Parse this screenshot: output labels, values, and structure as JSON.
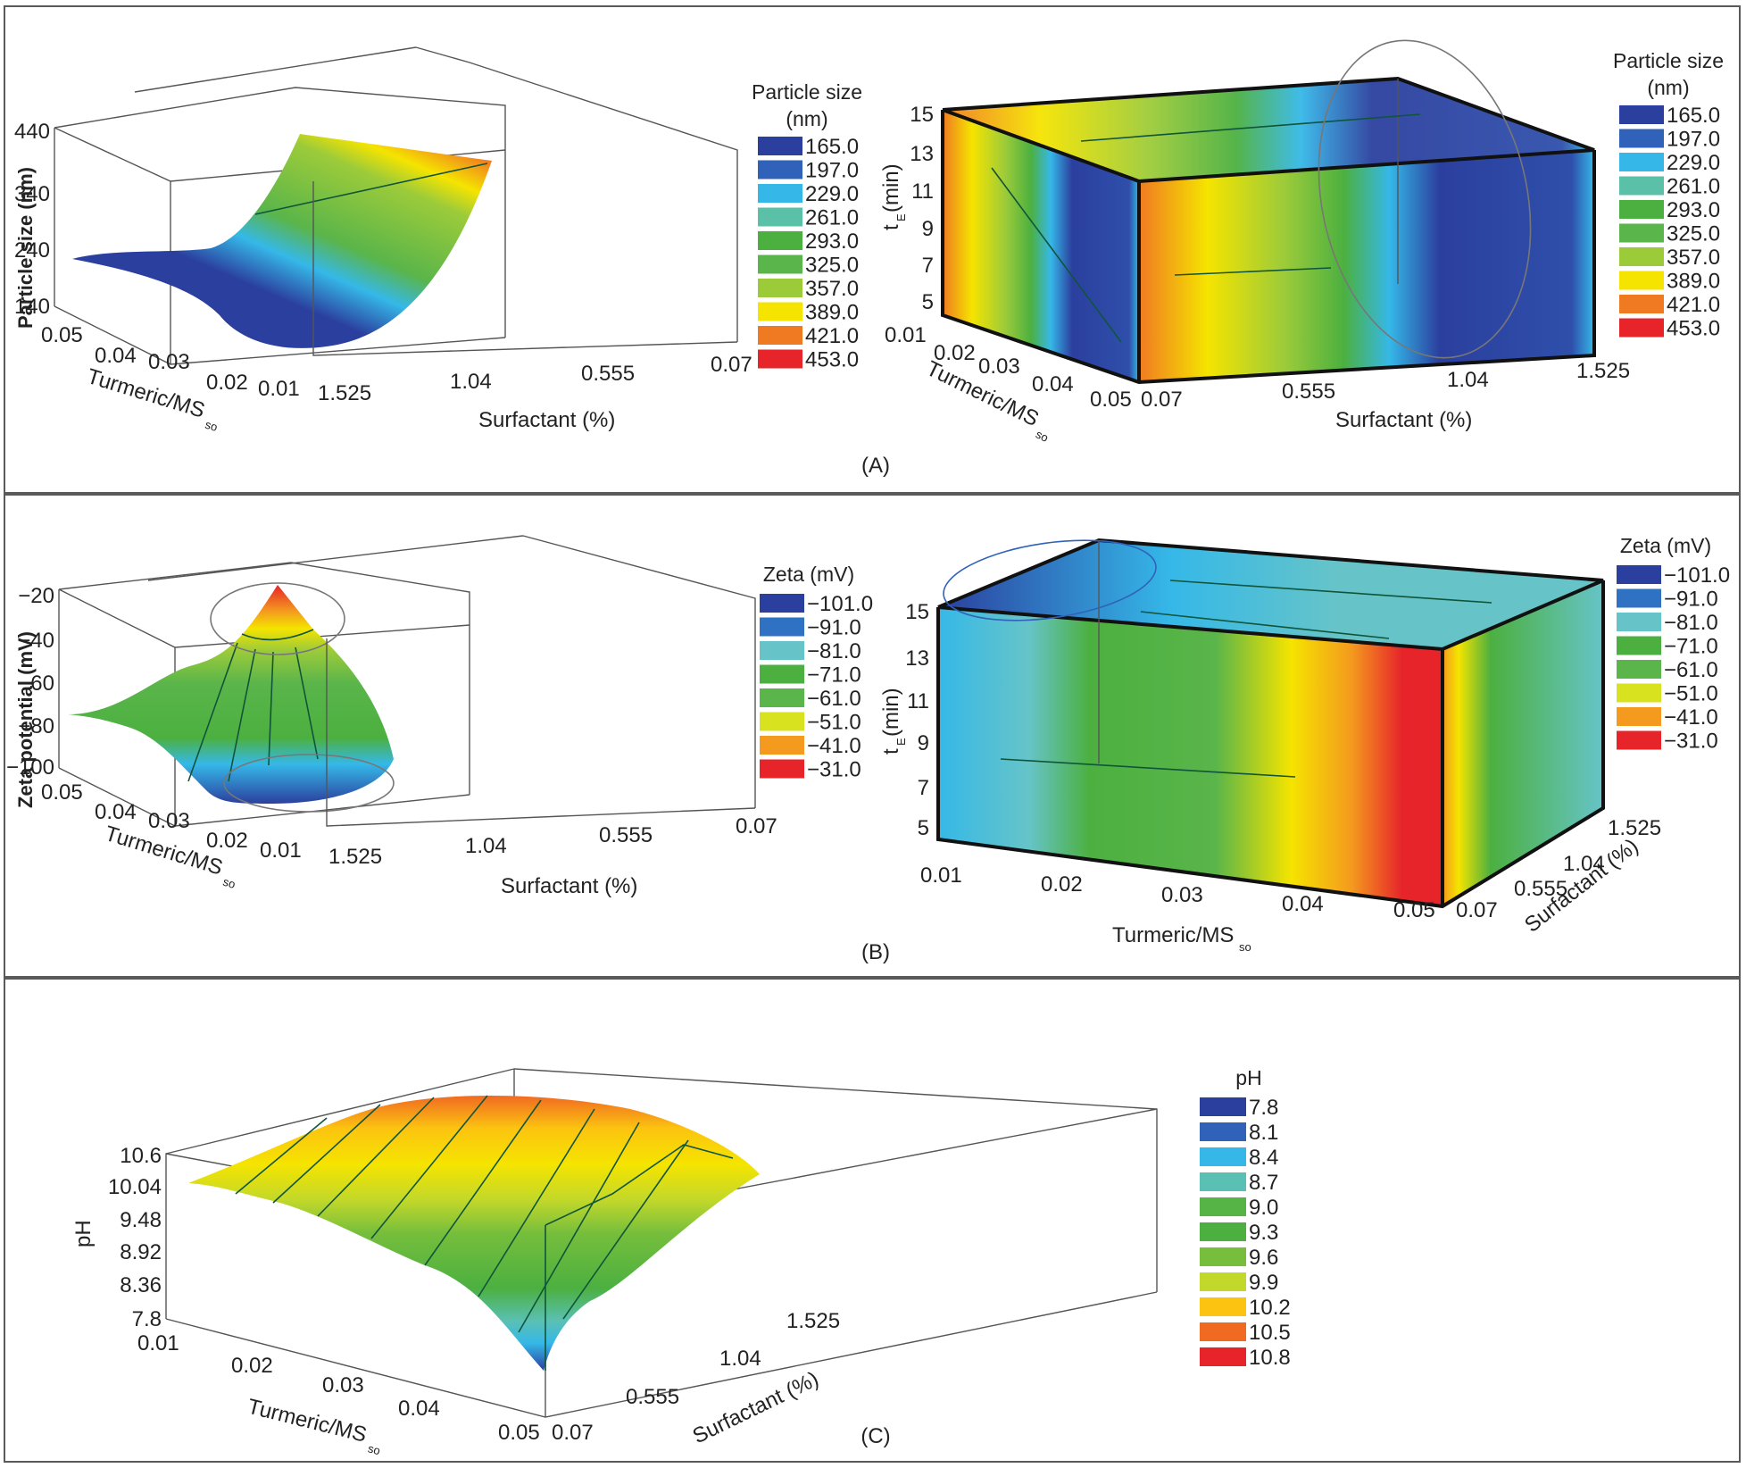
{
  "figure": {
    "panels": [
      {
        "id": "A",
        "label": "(A)"
      },
      {
        "id": "B",
        "label": "(B)"
      },
      {
        "id": "C",
        "label": "(C)"
      }
    ]
  },
  "colormaps": {
    "particle": [
      "#2b3f9e",
      "#2f62b8",
      "#35b8e8",
      "#5ac0a8",
      "#4cb040",
      "#5ab54a",
      "#9ccb3a",
      "#f5e400",
      "#f07a22",
      "#e6242a"
    ],
    "zeta": [
      "#2b3f9e",
      "#2f72c4",
      "#66c4c8",
      "#4cb040",
      "#5ab54a",
      "#d8e21e",
      "#f49a1e",
      "#e6242a"
    ],
    "ph": [
      "#2b3f9e",
      "#2f62b8",
      "#35b8e8",
      "#5ac0b4",
      "#56b446",
      "#4cb040",
      "#76be3c",
      "#c2d82a",
      "#fcc410",
      "#f06a22",
      "#e6242a"
    ]
  },
  "chart_data": [
    {
      "id": "A-surface",
      "type": "surface3d",
      "panel": "A",
      "zlabel": "Particle size (nm)",
      "xlabel": "Turmeric/MS",
      "xlabel_sub": "so",
      "ylabel": "Surfactant (%)",
      "z_ticks": [
        "440",
        "340",
        "240",
        "140"
      ],
      "zlim": [
        140,
        440
      ],
      "x_ticks": [
        "0.05",
        "0.04",
        "0.03",
        "0.02",
        "0.01"
      ],
      "y_ticks": [
        "1.525",
        "1.04",
        "0.555",
        "0.07"
      ],
      "legend": {
        "title_line1": "Particle size",
        "title_line2": "(nm)",
        "values": [
          "165.0",
          "197.0",
          "229.0",
          "261.0",
          "293.0",
          "325.0",
          "357.0",
          "389.0",
          "421.0",
          "453.0"
        ]
      },
      "surface_profile": [
        {
          "surfactant": 1.525,
          "particle_size": 210
        },
        {
          "surfactant": 1.04,
          "particle_size": 165
        },
        {
          "surfactant": 0.555,
          "particle_size": 290
        },
        {
          "surfactant": 0.07,
          "particle_size": 430
        }
      ]
    },
    {
      "id": "A-volume",
      "type": "volume3d",
      "panel": "A",
      "zlabel": "t",
      "zlabel_sub": "E",
      "zlabel_unit": " (min)",
      "z_ticks": [
        "15",
        "13",
        "11",
        "9",
        "7",
        "5"
      ],
      "zlim": [
        5,
        15
      ],
      "x_ticks": [
        "0.01",
        "0.02",
        "0.03",
        "0.04",
        "0.05"
      ],
      "xlabel": "Turmeric/MS",
      "xlabel_sub": "so",
      "y_ticks": [
        "0.07",
        "0.555",
        "1.04",
        "1.525"
      ],
      "ylabel": "Surfactant (%)",
      "legend": {
        "title_line1": "Particle size",
        "title_line2": "(nm)",
        "values": [
          "165.0",
          "197.0",
          "229.0",
          "261.0",
          "293.0",
          "325.0",
          "357.0",
          "389.0",
          "421.0",
          "453.0"
        ]
      }
    },
    {
      "id": "B-surface",
      "type": "surface3d",
      "panel": "B",
      "zlabel": "Zeta potential (mV)",
      "z_ticks": [
        "−20",
        "−40",
        "−60",
        "−80",
        "−100"
      ],
      "zlim": [
        -100,
        -20
      ],
      "x_ticks": [
        "0.05",
        "0.04",
        "0.03",
        "0.02",
        "0.01"
      ],
      "xlabel": "Turmeric/MS",
      "xlabel_sub": "so",
      "y_ticks": [
        "1.525",
        "1.04",
        "0.555",
        "0.07"
      ],
      "ylabel": "Surfactant (%)",
      "legend": {
        "title_line1": "Zeta (mV)",
        "values": [
          "−101.0",
          "−91.0",
          "−81.0",
          "−71.0",
          "−61.0",
          "−51.0",
          "−41.0",
          "−31.0"
        ]
      }
    },
    {
      "id": "B-volume",
      "type": "volume3d",
      "panel": "B",
      "zlabel": "t",
      "zlabel_sub": "E",
      "zlabel_unit": " (min)",
      "z_ticks": [
        "15",
        "13",
        "11",
        "9",
        "7",
        "5"
      ],
      "zlim": [
        5,
        15
      ],
      "x_ticks": [
        "0.01",
        "0.02",
        "0.03",
        "0.04",
        "0.05"
      ],
      "xlabel": "Turmeric/MS",
      "xlabel_sub": "so",
      "y_ticks": [
        "0.07",
        "0.555",
        "1.04",
        "1.525"
      ],
      "ylabel": "Surfactant (%)",
      "legend": {
        "title_line1": "Zeta (mV)",
        "values": [
          "−101.0",
          "−91.0",
          "−81.0",
          "−71.0",
          "−61.0",
          "−51.0",
          "−41.0",
          "−31.0"
        ]
      }
    },
    {
      "id": "C-surface",
      "type": "surface3d",
      "panel": "C",
      "zlabel": "pH",
      "z_ticks": [
        "10.6",
        "10.04",
        "9.48",
        "8.92",
        "8.36",
        "7.8"
      ],
      "zlim": [
        7.8,
        10.6
      ],
      "x_ticks": [
        "0.01",
        "0.02",
        "0.03",
        "0.04",
        "0.05"
      ],
      "xlabel": "Turmeric/MS",
      "xlabel_sub": "so",
      "y_ticks": [
        "0.07",
        "0.555",
        "1.04",
        "1.525"
      ],
      "ylabel": "Surfactant (%)",
      "legend": {
        "title_line1": "pH",
        "values": [
          "7.8",
          "8.1",
          "8.4",
          "8.7",
          "9.0",
          "9.3",
          "9.6",
          "9.9",
          "10.2",
          "10.5",
          "10.8"
        ]
      }
    }
  ]
}
